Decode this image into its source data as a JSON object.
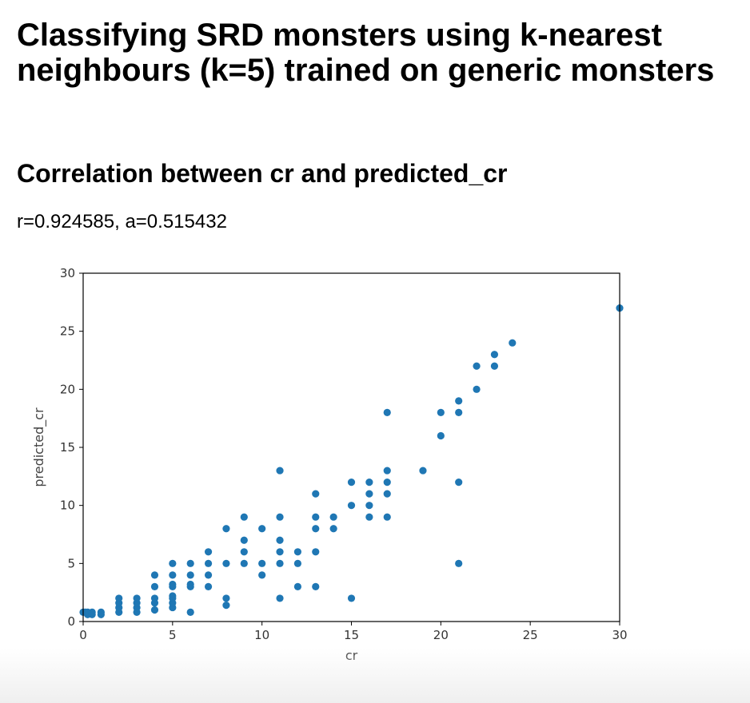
{
  "page": {
    "title": "Classifying SRD monsters using k-nearest neighbours (k=5) trained on generic monsters",
    "subtitle": "Correlation between cr and predicted_cr",
    "stats": "r=0.924585, a=0.515432"
  },
  "chart_data": {
    "type": "scatter",
    "xlabel": "cr",
    "ylabel": "predicted_cr",
    "xlim": [
      0,
      30
    ],
    "ylim": [
      0,
      30
    ],
    "xticks": [
      "0",
      "5",
      "10",
      "15",
      "20",
      "25",
      "30"
    ],
    "yticks": [
      "0",
      "5",
      "10",
      "15",
      "20",
      "25",
      "30"
    ],
    "grid": false,
    "color": "#1f77b4",
    "points": [
      [
        0,
        0.8
      ],
      [
        0.125,
        0.8
      ],
      [
        0.25,
        0.6
      ],
      [
        0.25,
        0.8
      ],
      [
        0.5,
        0.8
      ],
      [
        0.5,
        0.6
      ],
      [
        1,
        0.8
      ],
      [
        1,
        0.6
      ],
      [
        2,
        0.8
      ],
      [
        2,
        1.2
      ],
      [
        2,
        1.6
      ],
      [
        2,
        2
      ],
      [
        3,
        0.8
      ],
      [
        3,
        1.2
      ],
      [
        3,
        1.6
      ],
      [
        3,
        2
      ],
      [
        4,
        1.0
      ],
      [
        4,
        1.6
      ],
      [
        4,
        2
      ],
      [
        4,
        3
      ],
      [
        4,
        4
      ],
      [
        5,
        1.2
      ],
      [
        5,
        1.6
      ],
      [
        5,
        2
      ],
      [
        5,
        2.2
      ],
      [
        5,
        3
      ],
      [
        5,
        3.2
      ],
      [
        5,
        4
      ],
      [
        5,
        5
      ],
      [
        6,
        0.8
      ],
      [
        6,
        3
      ],
      [
        6,
        3.2
      ],
      [
        6,
        4
      ],
      [
        6,
        5
      ],
      [
        7,
        3
      ],
      [
        7,
        4
      ],
      [
        7,
        5
      ],
      [
        7,
        6
      ],
      [
        8,
        1.4
      ],
      [
        8,
        2
      ],
      [
        8,
        5
      ],
      [
        8,
        8
      ],
      [
        9,
        5
      ],
      [
        9,
        6
      ],
      [
        9,
        7
      ],
      [
        9,
        9
      ],
      [
        10,
        4
      ],
      [
        10,
        5
      ],
      [
        10,
        8
      ],
      [
        11,
        2
      ],
      [
        11,
        5
      ],
      [
        11,
        6
      ],
      [
        11,
        7
      ],
      [
        11,
        9
      ],
      [
        11,
        13
      ],
      [
        12,
        3
      ],
      [
        12,
        5
      ],
      [
        12,
        6
      ],
      [
        13,
        3
      ],
      [
        13,
        6
      ],
      [
        13,
        8
      ],
      [
        13,
        9
      ],
      [
        13,
        11
      ],
      [
        14,
        8
      ],
      [
        14,
        9
      ],
      [
        15,
        2
      ],
      [
        15,
        10
      ],
      [
        15,
        12
      ],
      [
        16,
        9
      ],
      [
        16,
        10
      ],
      [
        16,
        11
      ],
      [
        16,
        12
      ],
      [
        17,
        9
      ],
      [
        17,
        11
      ],
      [
        17,
        12
      ],
      [
        17,
        13
      ],
      [
        17,
        18
      ],
      [
        19,
        13
      ],
      [
        20,
        16
      ],
      [
        20,
        18
      ],
      [
        21,
        5
      ],
      [
        21,
        12
      ],
      [
        21,
        18
      ],
      [
        21,
        19
      ],
      [
        22,
        20
      ],
      [
        22,
        22
      ],
      [
        23,
        22
      ],
      [
        23,
        23
      ],
      [
        24,
        24
      ],
      [
        30,
        27
      ]
    ]
  }
}
